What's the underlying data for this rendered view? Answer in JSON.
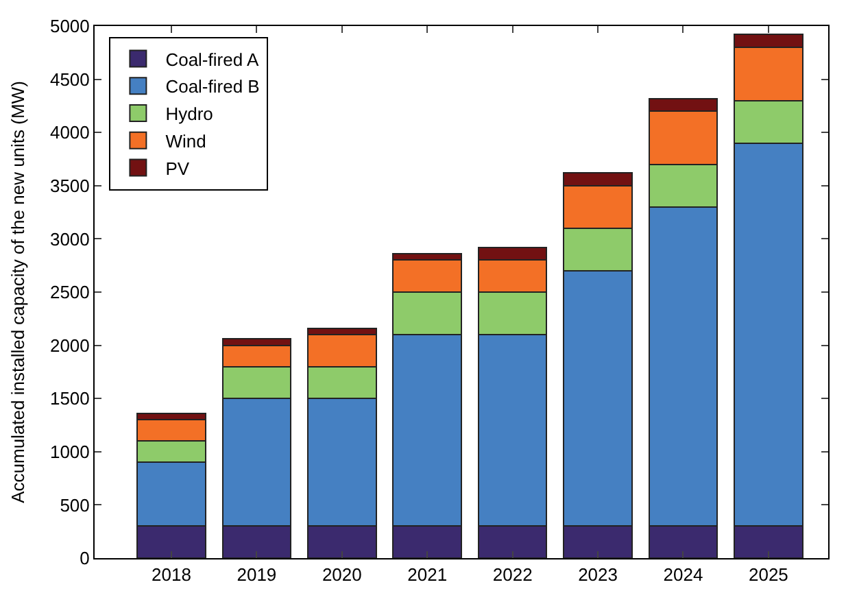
{
  "chart_data": {
    "type": "bar",
    "stacked": true,
    "ylabel": "Accumulated installed capacity of the new units (MW)",
    "categories": [
      "2018",
      "2019",
      "2020",
      "2021",
      "2022",
      "2023",
      "2024",
      "2025"
    ],
    "series": [
      {
        "name": "Coal-fired A",
        "color": "#3b2a6e",
        "values": [
          300,
          300,
          300,
          300,
          300,
          300,
          300,
          300
        ]
      },
      {
        "name": "Coal-fired B",
        "color": "#4580c2",
        "values": [
          600,
          1200,
          1200,
          1800,
          1800,
          2400,
          3000,
          3600
        ]
      },
      {
        "name": "Hydro",
        "color": "#8ecb6a",
        "values": [
          200,
          300,
          300,
          400,
          400,
          400,
          400,
          400
        ]
      },
      {
        "name": "Wind",
        "color": "#f37026",
        "values": [
          200,
          200,
          300,
          300,
          300,
          400,
          500,
          500
        ]
      },
      {
        "name": "PV",
        "color": "#721112",
        "values": [
          60,
          60,
          60,
          60,
          120,
          120,
          120,
          120
        ]
      }
    ],
    "ylim": [
      0,
      5000
    ],
    "yticks": [
      0,
      500,
      1000,
      1500,
      2000,
      2500,
      3000,
      3500,
      4000,
      4500,
      5000
    ],
    "legend": "top left"
  }
}
